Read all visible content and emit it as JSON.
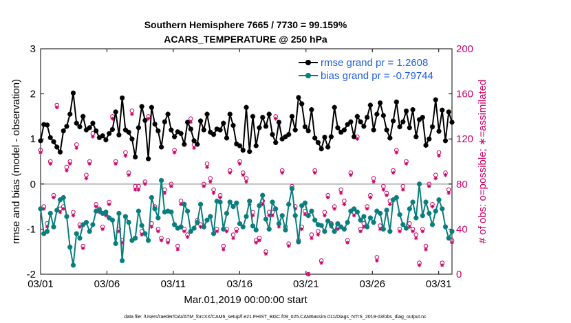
{
  "chart_data": {
    "type": "line",
    "title_line1": "Southern Hemisphere 7665 / 7730 = 99.159%",
    "title_line2": "ACARS_TEMPERATURE @ 250 hPa",
    "ylabel_left": "rmse and bias (model - observation)",
    "ylabel_right": "# of obs: o=possible; ∗=assimilated",
    "xlabel": "Mar.01,2019 00:00:00 start",
    "ylim_left": [
      -2,
      3
    ],
    "ylim_right": [
      0,
      200
    ],
    "xlim": [
      0,
      31
    ],
    "left_ticks": [
      "-2",
      "-1",
      "0",
      "1",
      "2",
      "3"
    ],
    "right_ticks": [
      "0",
      "40",
      "80",
      "120",
      "160",
      "200"
    ],
    "x_ticks": [
      {
        "x": 0,
        "label": "03/01"
      },
      {
        "x": 5,
        "label": "03/06"
      },
      {
        "x": 10,
        "label": "03/11"
      },
      {
        "x": 15,
        "label": "03/16"
      },
      {
        "x": 20,
        "label": "03/21"
      },
      {
        "x": 25,
        "label": "03/26"
      },
      {
        "x": 30,
        "label": "03/31"
      }
    ],
    "series": [
      {
        "name": "rmse",
        "legend": "rmse grand pr = 1.2608",
        "color": "#000000",
        "values": [
          0.96,
          1.32,
          1.31,
          1.03,
          0.94,
          0.82,
          0.71,
          1.18,
          1.28,
          1.55,
          2.02,
          1.35,
          1.27,
          1.5,
          1.2,
          1.25,
          1.35,
          1.18,
          1.03,
          1.07,
          0.98,
          1.12,
          1.21,
          1.6,
          1.09,
          1.91,
          1.2,
          1.15,
          1.0,
          0.6,
          1.25,
          1.72,
          1.41,
          0.56,
          1.7,
          1.33,
          1.18,
          0.82,
          1.38,
          1.55,
          1.2,
          1.05,
          1.16,
          1.12,
          0.88,
          1.37,
          1.22,
          0.96,
          0.88,
          1.4,
          1.2,
          1.55,
          1.15,
          1.1,
          1.22,
          1.2,
          1.35,
          1.02,
          1.55,
          1.3,
          0.89,
          0.85,
          0.75,
          1.7,
          0.72,
          1.5,
          0.85,
          1.25,
          1.48,
          1.28,
          1.55,
          1.1,
          0.92,
          1.37,
          1.0,
          1.05,
          1.1,
          1.5,
          1.2,
          1.92,
          1.78,
          1.27,
          1.18,
          1.65,
          1.02,
          0.92,
          0.78,
          1.04,
          0.82,
          1.05,
          1.7,
          1.25,
          1.15,
          1.2,
          1.32,
          1.38,
          1.05,
          1.5,
          1.38,
          1.28,
          1.48,
          1.75,
          1.2,
          1.55,
          1.8,
          1.52,
          1.2,
          1.02,
          1.4,
          1.82,
          1.27,
          1.38,
          1.62,
          1.25,
          1.65,
          1.05,
          1.43,
          1.48,
          0.86,
          1.0,
          1.27,
          1.87,
          1.17,
          1.64,
          0.96,
          1.6,
          1.37
        ]
      },
      {
        "name": "bias",
        "legend": "bias grand pr = -0.79744",
        "color": "#0a7e7e",
        "values": [
          -0.55,
          -1.1,
          -1.05,
          -0.65,
          -0.95,
          -0.58,
          -0.35,
          -0.3,
          -0.72,
          -1.4,
          -1.8,
          -1.1,
          -1.2,
          -0.9,
          -0.85,
          -1.05,
          -0.9,
          -0.6,
          -0.58,
          -0.65,
          -0.62,
          -0.75,
          -0.8,
          -1.32,
          -0.65,
          -1.7,
          -0.72,
          -0.85,
          -1.25,
          -1.2,
          -0.6,
          -0.92,
          -1.1,
          -1.25,
          -0.3,
          -0.55,
          -0.75,
          0.08,
          -0.62,
          -0.6,
          -0.62,
          -0.9,
          -0.98,
          -0.95,
          -0.45,
          -0.6,
          -1.05,
          -0.98,
          -0.85,
          -0.45,
          -0.95,
          -0.8,
          -0.72,
          -1.1,
          -0.38,
          -0.4,
          -1.0,
          -0.65,
          -0.4,
          -0.5,
          -0.42,
          -0.88,
          -0.95,
          -0.72,
          -0.38,
          -0.93,
          -1.02,
          -0.48,
          -0.25,
          -0.78,
          -1.0,
          -0.4,
          -0.55,
          -0.88,
          -0.7,
          -1.02,
          -0.45,
          -0.1,
          -0.7,
          -1.28,
          -0.48,
          -0.42,
          -0.7,
          -0.6,
          -0.8,
          -0.9,
          -0.92,
          -1.05,
          -0.82,
          -0.9,
          -1.05,
          -0.88,
          -0.95,
          -1.0,
          -0.85,
          -0.6,
          -0.55,
          -0.62,
          -0.8,
          -0.72,
          -0.95,
          -0.75,
          -0.85,
          -0.6,
          -0.65,
          -1.0,
          -0.58,
          -1.05,
          -0.35,
          -0.3,
          -0.68,
          -0.9,
          -0.98,
          -0.55,
          -0.4,
          -0.75,
          0.0,
          -0.7,
          -0.4,
          -0.65,
          -0.9,
          -0.6,
          -0.35,
          -0.55,
          -0.95,
          -1.2,
          -1.05
        ]
      }
    ],
    "obs_possible": [
      110,
      60,
      45,
      100,
      70,
      150,
      58,
      60,
      95,
      100,
      55,
      115,
      44,
      25,
      88,
      100,
      125,
      62,
      58,
      42,
      55,
      64,
      140,
      100,
      40,
      30,
      108,
      90,
      145,
      78,
      78,
      38,
      82,
      140,
      45,
      60,
      40,
      32,
      75,
      30,
      80,
      110,
      25,
      65,
      40,
      35,
      138,
      115,
      48,
      44,
      80,
      98,
      85,
      75,
      40,
      70,
      25,
      40,
      92,
      35,
      40,
      100,
      90,
      85,
      65,
      55,
      30,
      32,
      65,
      20,
      55,
      55,
      140,
      45,
      92,
      42,
      27,
      78,
      60,
      30,
      42,
      56,
      0,
      35,
      92,
      38,
      12,
      55,
      70,
      45,
      60,
      42,
      75,
      65,
      30,
      90,
      55,
      122,
      40,
      45,
      60,
      70,
      85,
      15,
      43,
      78,
      72,
      65,
      92,
      110,
      40,
      78,
      100,
      45,
      40,
      35,
      10,
      40,
      25,
      80,
      62,
      88,
      108,
      10,
      90,
      75,
      30
    ],
    "obs_assimilated": [
      108,
      58,
      42,
      98,
      68,
      148,
      55,
      58,
      92,
      98,
      52,
      112,
      42,
      23,
      85,
      98,
      122,
      60,
      55,
      40,
      52,
      62,
      138,
      98,
      38,
      28,
      105,
      88,
      142,
      75,
      75,
      35,
      80,
      138,
      42,
      58,
      38,
      30,
      72,
      28,
      78,
      108,
      22,
      62,
      38,
      33,
      135,
      112,
      45,
      42,
      78,
      95,
      82,
      72,
      38,
      68,
      22,
      38,
      90,
      32,
      38,
      98,
      88,
      82,
      62,
      52,
      28,
      30,
      62,
      18,
      52,
      52,
      138,
      42,
      90,
      40,
      25,
      75,
      58,
      28,
      40,
      53,
      0,
      32,
      90,
      35,
      10,
      52,
      68,
      42,
      58,
      40,
      72,
      62,
      28,
      88,
      52,
      120,
      38,
      42,
      58,
      68,
      82,
      12,
      40,
      75,
      70,
      62,
      90,
      108,
      38,
      75,
      98,
      42,
      38,
      32,
      8,
      38,
      22,
      78,
      60,
      85,
      105,
      8,
      88,
      72,
      28
    ]
  },
  "footer": "data file: /Users/raeder/DAI/ATM_forcXX/CAM6_setup/f.e21.FHIST_BGC.f09_025.CAM6assim.011/Diags_NTrS_2019-03/obs_diag_output.nc"
}
